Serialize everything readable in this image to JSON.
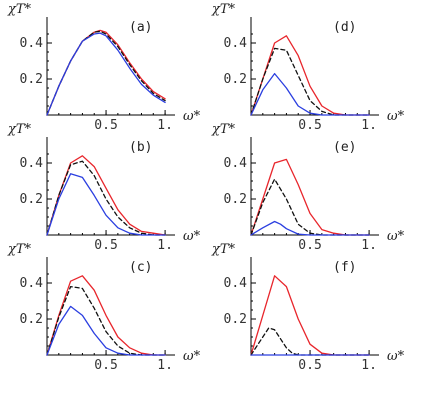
{
  "chart_data": [
    {
      "type": "line",
      "panel_label": "(a)",
      "ylabel": "χT*",
      "xlabel": "ω*",
      "xlim": [
        0,
        1.05
      ],
      "ylim": [
        0,
        0.5
      ],
      "xticks": [
        {
          "v": 0.5,
          "label": "0.5"
        },
        {
          "v": 1.0,
          "label": "1."
        }
      ],
      "yticks": [
        {
          "v": 0.2,
          "label": "0.2"
        },
        {
          "v": 0.4,
          "label": "0.4"
        }
      ],
      "colors": {
        "red": "#e8262c",
        "black": "#111111",
        "blue": "#2b3fe0"
      },
      "series": [
        {
          "color": "red",
          "dashed": false,
          "x": [
            0,
            0.1,
            0.2,
            0.3,
            0.4,
            0.45,
            0.5,
            0.6,
            0.7,
            0.8,
            0.9,
            1.0
          ],
          "y": [
            0,
            0.16,
            0.3,
            0.41,
            0.46,
            0.47,
            0.46,
            0.39,
            0.29,
            0.2,
            0.13,
            0.09
          ]
        },
        {
          "color": "black",
          "dashed": true,
          "x": [
            0,
            0.1,
            0.2,
            0.3,
            0.4,
            0.45,
            0.5,
            0.6,
            0.7,
            0.8,
            0.9,
            1.0
          ],
          "y": [
            0,
            0.16,
            0.3,
            0.41,
            0.46,
            0.465,
            0.45,
            0.38,
            0.28,
            0.19,
            0.12,
            0.08
          ]
        },
        {
          "color": "blue",
          "dashed": false,
          "x": [
            0,
            0.1,
            0.2,
            0.3,
            0.4,
            0.45,
            0.5,
            0.6,
            0.7,
            0.8,
            0.9,
            1.0
          ],
          "y": [
            0,
            0.16,
            0.3,
            0.41,
            0.45,
            0.455,
            0.44,
            0.36,
            0.26,
            0.17,
            0.11,
            0.07
          ]
        }
      ]
    },
    {
      "type": "line",
      "panel_label": "(d)",
      "ylabel": "χT*",
      "xlabel": "ω*",
      "xlim": [
        0,
        1.05
      ],
      "ylim": [
        0,
        0.5
      ],
      "xticks": [
        {
          "v": 0.5,
          "label": "0.5"
        },
        {
          "v": 1.0,
          "label": "1."
        }
      ],
      "yticks": [
        {
          "v": 0.2,
          "label": "0.2"
        },
        {
          "v": 0.4,
          "label": "0.4"
        }
      ],
      "colors": {
        "red": "#e8262c",
        "black": "#111111",
        "blue": "#2b3fe0"
      },
      "series": [
        {
          "color": "red",
          "dashed": false,
          "x": [
            0,
            0.1,
            0.2,
            0.3,
            0.4,
            0.5,
            0.6,
            0.7,
            0.8,
            0.9,
            1.0
          ],
          "y": [
            0,
            0.2,
            0.4,
            0.44,
            0.33,
            0.16,
            0.05,
            0.01,
            0,
            0,
            0
          ]
        },
        {
          "color": "black",
          "dashed": true,
          "x": [
            0,
            0.1,
            0.2,
            0.3,
            0.4,
            0.5,
            0.6,
            0.7,
            0.8,
            0.9,
            1.0
          ],
          "y": [
            0,
            0.2,
            0.37,
            0.36,
            0.22,
            0.08,
            0.02,
            0,
            0,
            0,
            0
          ]
        },
        {
          "color": "blue",
          "dashed": false,
          "x": [
            0,
            0.1,
            0.2,
            0.3,
            0.4,
            0.5,
            0.6,
            0.7,
            0.8,
            0.9,
            1.0
          ],
          "y": [
            0,
            0.14,
            0.23,
            0.15,
            0.05,
            0.01,
            0,
            0,
            0,
            0,
            0
          ]
        }
      ]
    },
    {
      "type": "line",
      "panel_label": "(b)",
      "ylabel": "χT*",
      "xlabel": "ω*",
      "xlim": [
        0,
        1.05
      ],
      "ylim": [
        0,
        0.5
      ],
      "xticks": [
        {
          "v": 0.5,
          "label": "0.5"
        },
        {
          "v": 1.0,
          "label": "1."
        }
      ],
      "yticks": [
        {
          "v": 0.2,
          "label": "0.2"
        },
        {
          "v": 0.4,
          "label": "0.4"
        }
      ],
      "colors": {
        "red": "#e8262c",
        "black": "#111111",
        "blue": "#2b3fe0"
      },
      "series": [
        {
          "color": "red",
          "dashed": false,
          "x": [
            0,
            0.1,
            0.2,
            0.3,
            0.4,
            0.5,
            0.6,
            0.7,
            0.8,
            0.9,
            1.0
          ],
          "y": [
            0,
            0.22,
            0.4,
            0.44,
            0.38,
            0.26,
            0.14,
            0.06,
            0.02,
            0.01,
            0
          ]
        },
        {
          "color": "black",
          "dashed": true,
          "x": [
            0,
            0.1,
            0.2,
            0.3,
            0.4,
            0.5,
            0.6,
            0.7,
            0.8,
            0.9,
            1.0
          ],
          "y": [
            0,
            0.22,
            0.39,
            0.41,
            0.33,
            0.2,
            0.1,
            0.04,
            0.01,
            0,
            0
          ]
        },
        {
          "color": "blue",
          "dashed": false,
          "x": [
            0,
            0.1,
            0.2,
            0.3,
            0.4,
            0.5,
            0.6,
            0.7,
            0.8,
            0.9,
            1.0
          ],
          "y": [
            0,
            0.2,
            0.34,
            0.32,
            0.22,
            0.11,
            0.04,
            0.01,
            0,
            0,
            0
          ]
        }
      ]
    },
    {
      "type": "line",
      "panel_label": "(e)",
      "ylabel": "χT*",
      "xlabel": "ω*",
      "xlim": [
        0,
        1.05
      ],
      "ylim": [
        0,
        0.5
      ],
      "xticks": [
        {
          "v": 0.5,
          "label": "0.5"
        },
        {
          "v": 1.0,
          "label": "1."
        }
      ],
      "yticks": [
        {
          "v": 0.2,
          "label": "0.2"
        },
        {
          "v": 0.4,
          "label": "0.4"
        }
      ],
      "colors": {
        "red": "#e8262c",
        "black": "#111111",
        "blue": "#2b3fe0"
      },
      "series": [
        {
          "color": "red",
          "dashed": false,
          "x": [
            0,
            0.1,
            0.2,
            0.3,
            0.4,
            0.5,
            0.6,
            0.7,
            0.8,
            0.9,
            1.0
          ],
          "y": [
            0,
            0.2,
            0.4,
            0.42,
            0.28,
            0.12,
            0.03,
            0.01,
            0,
            0,
            0
          ]
        },
        {
          "color": "black",
          "dashed": true,
          "x": [
            0,
            0.1,
            0.2,
            0.3,
            0.4,
            0.5,
            0.6,
            0.7,
            0.8,
            0.9,
            1.0
          ],
          "y": [
            0,
            0.18,
            0.31,
            0.2,
            0.06,
            0.01,
            0,
            0,
            0,
            0,
            0
          ]
        },
        {
          "color": "blue",
          "dashed": false,
          "x": [
            0,
            0.1,
            0.2,
            0.25,
            0.3,
            0.4,
            0.5,
            0.6,
            0.7,
            0.8,
            0.9,
            1.0
          ],
          "y": [
            0,
            0.04,
            0.075,
            0.06,
            0.035,
            0.005,
            0,
            0,
            0,
            0,
            0,
            0
          ]
        }
      ]
    },
    {
      "type": "line",
      "panel_label": "(c)",
      "ylabel": "χT*",
      "xlabel": "ω*",
      "xlim": [
        0,
        1.05
      ],
      "ylim": [
        0,
        0.5
      ],
      "xticks": [
        {
          "v": 0.5,
          "label": "0.5"
        },
        {
          "v": 1.0,
          "label": "1."
        }
      ],
      "yticks": [
        {
          "v": 0.2,
          "label": "0.2"
        },
        {
          "v": 0.4,
          "label": "0.4"
        }
      ],
      "colors": {
        "red": "#e8262c",
        "black": "#111111",
        "blue": "#2b3fe0"
      },
      "series": [
        {
          "color": "red",
          "dashed": false,
          "x": [
            0,
            0.1,
            0.2,
            0.3,
            0.4,
            0.5,
            0.6,
            0.7,
            0.8,
            0.9,
            1.0
          ],
          "y": [
            0,
            0.22,
            0.41,
            0.44,
            0.36,
            0.22,
            0.1,
            0.04,
            0.01,
            0,
            0
          ]
        },
        {
          "color": "black",
          "dashed": true,
          "x": [
            0,
            0.1,
            0.2,
            0.3,
            0.4,
            0.5,
            0.6,
            0.7,
            0.8,
            0.9,
            1.0
          ],
          "y": [
            0,
            0.21,
            0.38,
            0.37,
            0.26,
            0.13,
            0.05,
            0.01,
            0,
            0,
            0
          ]
        },
        {
          "color": "blue",
          "dashed": false,
          "x": [
            0,
            0.1,
            0.2,
            0.3,
            0.4,
            0.5,
            0.6,
            0.7,
            0.8,
            0.9,
            1.0
          ],
          "y": [
            0,
            0.17,
            0.27,
            0.22,
            0.12,
            0.04,
            0.01,
            0,
            0,
            0,
            0
          ]
        }
      ]
    },
    {
      "type": "line",
      "panel_label": "(f)",
      "ylabel": "χT*",
      "xlabel": "ω*",
      "xlim": [
        0,
        1.05
      ],
      "ylim": [
        0,
        0.5
      ],
      "xticks": [
        {
          "v": 0.5,
          "label": "0.5"
        },
        {
          "v": 1.0,
          "label": "1."
        }
      ],
      "yticks": [
        {
          "v": 0.2,
          "label": "0.2"
        },
        {
          "v": 0.4,
          "label": "0.4"
        }
      ],
      "colors": {
        "red": "#e8262c",
        "black": "#111111",
        "blue": "#2b3fe0"
      },
      "series": [
        {
          "color": "red",
          "dashed": false,
          "x": [
            0,
            0.1,
            0.2,
            0.3,
            0.4,
            0.5,
            0.6,
            0.7,
            0.8,
            0.9,
            1.0
          ],
          "y": [
            0,
            0.22,
            0.44,
            0.38,
            0.2,
            0.06,
            0.01,
            0,
            0,
            0,
            0
          ]
        },
        {
          "color": "black",
          "dashed": true,
          "x": [
            0,
            0.1,
            0.15,
            0.2,
            0.25,
            0.3,
            0.35,
            0.4,
            0.5,
            0.6,
            0.7,
            0.8,
            0.9,
            1.0
          ],
          "y": [
            0,
            0.1,
            0.15,
            0.14,
            0.09,
            0.04,
            0.01,
            0,
            0,
            0,
            0,
            0,
            0,
            0
          ]
        },
        {
          "color": "blue",
          "dashed": false,
          "x": [
            0,
            0.5,
            1.0
          ],
          "y": [
            0,
            0,
            0
          ]
        }
      ]
    }
  ]
}
